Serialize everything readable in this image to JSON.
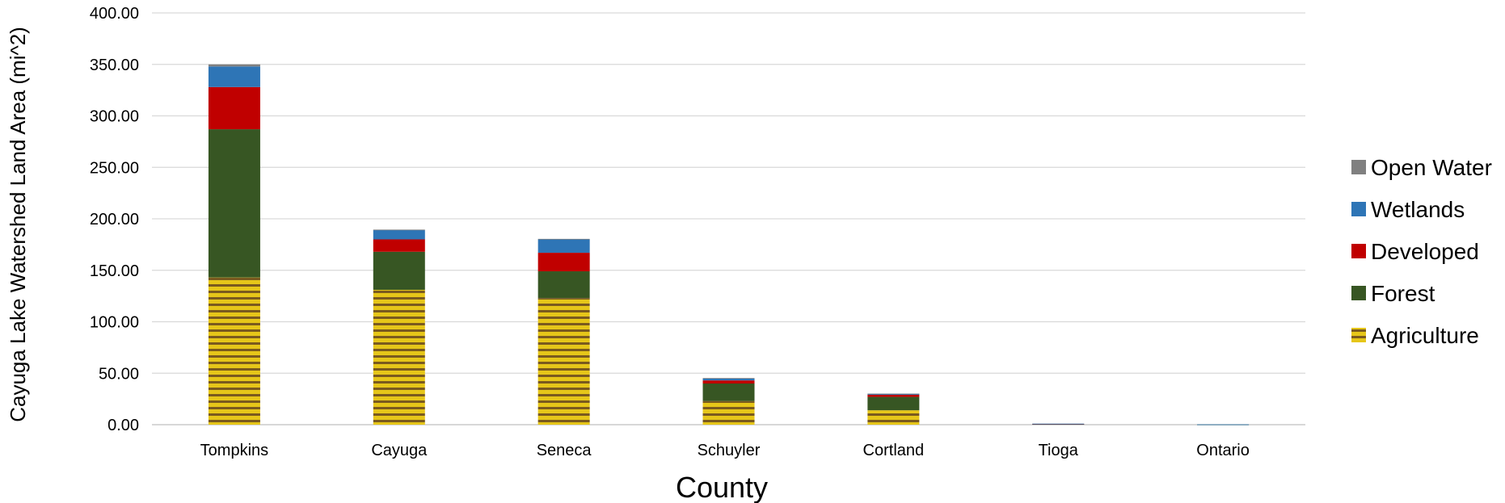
{
  "chart_data": {
    "type": "bar",
    "stacked": true,
    "categories": [
      "Tompkins",
      "Cayuga",
      "Seneca",
      "Schuyler",
      "Cortland",
      "Tioga",
      "Ontario"
    ],
    "series": [
      {
        "name": "Agriculture",
        "color": "#e6c619",
        "stripe_color": "#7a5a1e",
        "pattern": "horizontal-stripes",
        "values": [
          143,
          131,
          123,
          23,
          14,
          0,
          0
        ]
      },
      {
        "name": "Forest",
        "color": "#375623",
        "values": [
          144,
          37,
          26,
          17,
          13,
          0.6,
          0.2
        ]
      },
      {
        "name": "Developed",
        "color": "#c00000",
        "values": [
          41,
          12,
          18,
          3,
          2,
          0.2,
          0
        ]
      },
      {
        "name": "Wetlands",
        "color": "#2e75b6",
        "values": [
          20,
          9,
          13,
          2,
          1,
          0.2,
          0.1
        ]
      },
      {
        "name": "Open Water",
        "color": "#808080",
        "values": [
          2,
          0.5,
          0.5,
          0.3,
          0.2,
          0,
          0
        ]
      }
    ],
    "yticks": [
      "0.00",
      "50.00",
      "100.00",
      "150.00",
      "200.00",
      "250.00",
      "300.00",
      "350.00",
      "400.00"
    ],
    "ylim": [
      0,
      400
    ],
    "xlabel": "County",
    "ylabel": "Cayuga Lake Watershed Land Area (mi^2)",
    "legend_position": "right",
    "grid": true
  }
}
